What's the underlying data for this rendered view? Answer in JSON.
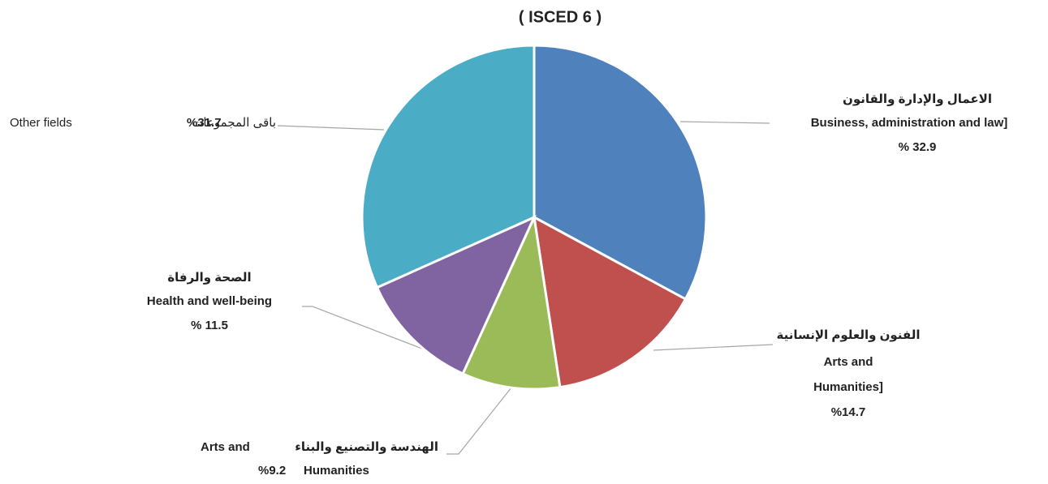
{
  "chart_data": {
    "type": "pie",
    "title": "( ISCED 6 )",
    "categories": [
      [
        "الاعمال والإدارة والقانون",
        "Business, administration and law]"
      ],
      [
        "الفنون والعلوم الإنسانية",
        "Arts and",
        "Humanities]"
      ],
      [
        "الهندسة والتصنيع والبناء",
        "Arts and",
        "Humanities"
      ],
      [
        "الصحة والرفاة",
        "Health and well-being"
      ],
      [
        "Other fields",
        "باقى المجموعات"
      ]
    ],
    "values": [
      32.9,
      14.7,
      9.2,
      11.5,
      31.7
    ],
    "value_labels": [
      "% 32.9",
      "%14.7",
      "%9.2",
      "% 11.5",
      "%31.7"
    ],
    "colors": [
      "#4f81bd",
      "#c0504d",
      "#9bbb59",
      "#8064a2",
      "#4bacc6"
    ]
  }
}
